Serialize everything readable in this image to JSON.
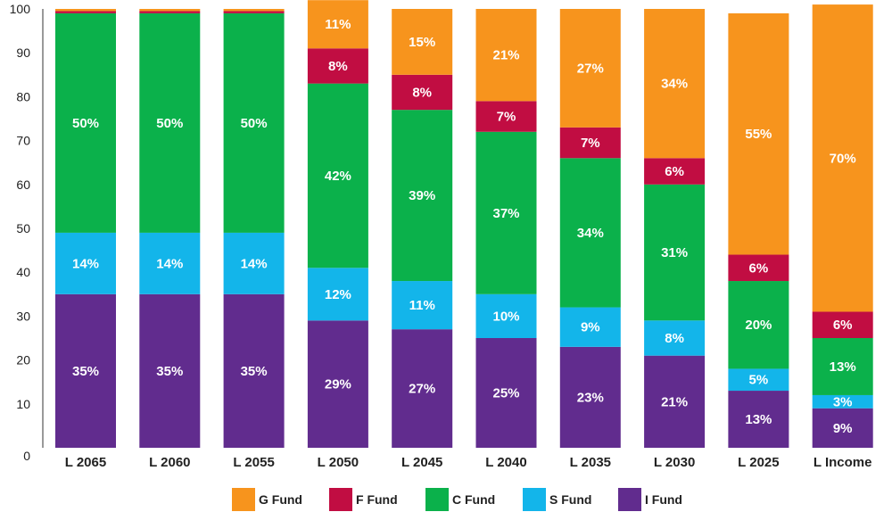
{
  "chart_data": {
    "type": "bar",
    "stacked": true,
    "title": "",
    "xlabel": "",
    "ylabel": "",
    "ylim": [
      0,
      100
    ],
    "yticks": [
      0,
      10,
      20,
      30,
      40,
      50,
      60,
      70,
      80,
      90,
      100
    ],
    "grid": false,
    "legend_position": "bottom",
    "categories": [
      "L 2065",
      "L 2060",
      "L 2055",
      "L 2050",
      "L 2045",
      "L 2040",
      "L 2035",
      "L 2030",
      "L 2025",
      "L Income"
    ],
    "series": [
      {
        "name": "I Fund",
        "color": "#612C8E",
        "values": [
          35,
          35,
          35,
          29,
          27,
          25,
          23,
          21,
          13,
          9
        ]
      },
      {
        "name": "S Fund",
        "color": "#13B5EA",
        "values": [
          14,
          14,
          14,
          12,
          11,
          10,
          9,
          8,
          5,
          3
        ]
      },
      {
        "name": "C Fund",
        "color": "#0BB14B",
        "values": [
          50,
          50,
          50,
          42,
          39,
          37,
          34,
          31,
          20,
          13
        ]
      },
      {
        "name": "F Fund",
        "color": "#C10D42",
        "values": [
          0.5,
          0.5,
          0.5,
          8,
          8,
          7,
          7,
          6,
          6,
          6
        ]
      },
      {
        "name": "G Fund",
        "color": "#F7941D",
        "values": [
          0.5,
          0.5,
          0.5,
          11,
          15,
          21,
          27,
          34,
          55,
          70
        ]
      }
    ],
    "data_labels": [
      {
        "series": "I Fund",
        "labels": [
          "35%",
          "35%",
          "35%",
          "29%",
          "27%",
          "25%",
          "23%",
          "21%",
          "13%",
          "9%"
        ]
      },
      {
        "series": "S Fund",
        "labels": [
          "14%",
          "14%",
          "14%",
          "12%",
          "11%",
          "10%",
          "9%",
          "8%",
          "5%",
          "3%"
        ]
      },
      {
        "series": "C Fund",
        "labels": [
          "50%",
          "50%",
          "50%",
          "42%",
          "39%",
          "37%",
          "34%",
          "31%",
          "20%",
          "13%"
        ]
      },
      {
        "series": "F Fund",
        "labels": [
          "",
          "",
          "",
          "8%",
          "8%",
          "7%",
          "7%",
          "6%",
          "6%",
          "6%"
        ]
      },
      {
        "series": "G Fund",
        "labels": [
          "",
          "",
          "",
          "11%",
          "15%",
          "21%",
          "27%",
          "34%",
          "55%",
          "70%"
        ]
      }
    ],
    "legend": [
      "G Fund",
      "F Fund",
      "C Fund",
      "S Fund",
      "I Fund"
    ]
  }
}
